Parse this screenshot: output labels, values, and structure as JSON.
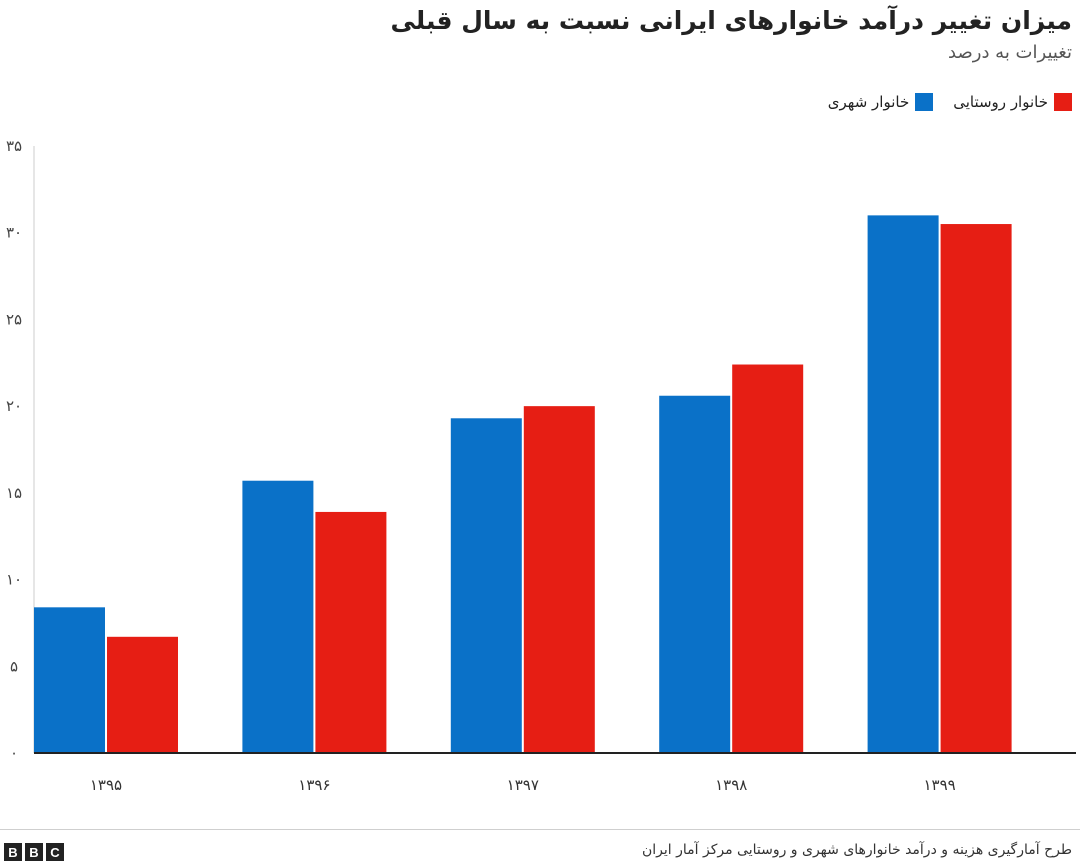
{
  "chart_data": {
    "type": "bar",
    "title": "میزان تغییر درآمد خانوارهای ایرانی نسبت به سال قبلی",
    "subtitle": "تغییرات به درصد",
    "categories": [
      "۱۳۹۵",
      "۱۳۹۶",
      "۱۳۹۷",
      "۱۳۹۸",
      "۱۳۹۹"
    ],
    "series": [
      {
        "name": "خانوار شهری",
        "color": "#0a71c8",
        "values": [
          8.4,
          15.7,
          19.3,
          20.6,
          31.0
        ]
      },
      {
        "name": "خانوار روستایی",
        "color": "#e61e14",
        "values": [
          6.7,
          13.9,
          20.0,
          22.4,
          30.5
        ]
      }
    ],
    "ylim": [
      0,
      35
    ],
    "yticks": [
      0,
      5,
      10,
      15,
      20,
      25,
      30,
      35
    ],
    "ytick_labels": [
      "۰",
      "۵",
      "۱۰",
      "۱۵",
      "۲۰",
      "۲۵",
      "۳۰",
      "۳۵"
    ],
    "grid": false,
    "legend": "top-right",
    "xlabel": "",
    "ylabel": ""
  },
  "footer": {
    "source": "طرح آمارگیری هزینه و درآمد خانوارهای شهری و روستایی مرکز آمار ایران",
    "logo_letters": [
      "B",
      "B",
      "C"
    ]
  }
}
